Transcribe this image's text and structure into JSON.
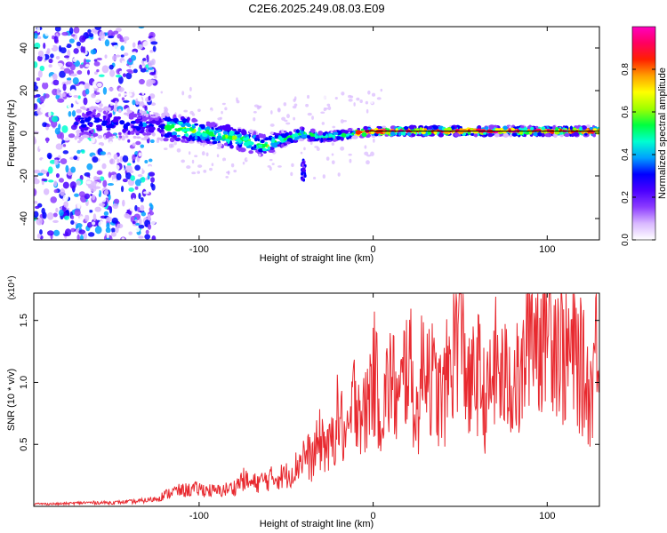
{
  "title": "C2E6.2025.249.08.03.E09",
  "chart_data": [
    {
      "type": "heatmap",
      "name": "spectrogram",
      "xlabel": "Height of straight line (km)",
      "ylabel": "Frequency (Hz)",
      "xlim": [
        -195,
        130
      ],
      "ylim": [
        -50,
        50
      ],
      "xticks": [
        -100,
        0,
        100
      ],
      "yticks": [
        -40,
        -20,
        0,
        20,
        40
      ],
      "grid": false,
      "colorbar": {
        "label": "Normalized spectral amplitude",
        "range": [
          0,
          1
        ],
        "ticks": [
          "0.0",
          "0.2",
          "0.4",
          "0.6",
          "0.8"
        ],
        "tick_values": [
          0.0,
          0.2,
          0.4,
          0.6,
          0.8
        ],
        "colors": [
          "#ffffff",
          "#d9b8ff",
          "#8c3cff",
          "#4a00ff",
          "#0000ff",
          "#00a0ff",
          "#00ffd0",
          "#00ff40",
          "#a0ff00",
          "#ffff00",
          "#ffa000",
          "#ff2000",
          "#ff0060",
          "#ff00c0"
        ]
      },
      "ridge": {
        "x": [
          -165,
          -150,
          -130,
          -110,
          -95,
          -80,
          -70,
          -62,
          -55,
          -48,
          -40,
          -30,
          -20,
          -10,
          0,
          10,
          30,
          60,
          90,
          130
        ],
        "y": [
          5,
          4.5,
          4,
          2,
          0,
          -2,
          -4,
          -6,
          -3,
          -2,
          0,
          -2,
          -1,
          0,
          1,
          1,
          1,
          1,
          1,
          1
        ],
        "half_width_hz": [
          8,
          7,
          6,
          6,
          5,
          5,
          5,
          5,
          4,
          3,
          3,
          2,
          2,
          2,
          2,
          2,
          2,
          2,
          2,
          2
        ]
      },
      "spur": {
        "x": -40,
        "y_range": [
          -22,
          -12
        ]
      }
    },
    {
      "type": "line",
      "name": "snr",
      "xlabel": "Height of straight line (km)",
      "ylabel": "SNR (10 * v/v)",
      "scale_label": "(x10⁴)",
      "xlim": [
        -195,
        130
      ],
      "ylim": [
        0,
        1.72
      ],
      "xticks": [
        -100,
        0,
        100
      ],
      "yticks": [
        0.5,
        1.0,
        1.5
      ],
      "grid": false,
      "series": [
        {
          "name": "SNR",
          "color": "#e8292f",
          "x": [
            -195,
            -180,
            -165,
            -150,
            -135,
            -125,
            -115,
            -100,
            -90,
            -80,
            -75,
            -70,
            -60,
            -50,
            -45,
            -40,
            -35,
            -30,
            -25,
            -20,
            -15,
            -10,
            -5,
            0,
            5,
            10,
            15,
            20,
            25,
            30,
            35,
            40,
            45,
            50,
            55,
            60,
            65,
            70,
            75,
            80,
            85,
            90,
            95,
            100,
            105,
            110,
            115,
            120,
            125,
            130
          ],
          "y": [
            0.02,
            0.02,
            0.03,
            0.03,
            0.04,
            0.06,
            0.12,
            0.14,
            0.12,
            0.15,
            0.22,
            0.18,
            0.22,
            0.25,
            0.3,
            0.42,
            0.38,
            0.55,
            0.45,
            0.75,
            0.5,
            0.95,
            0.7,
            1.1,
            0.75,
            1.05,
            0.8,
            1.25,
            0.7,
            1.3,
            0.95,
            0.85,
            1.2,
            1.6,
            0.9,
            1.1,
            0.8,
            1.15,
            1.0,
            1.05,
            0.95,
            1.6,
            1.35,
            1.7,
            1.4,
            1.2,
            1.25,
            1.1,
            0.9,
            1.65
          ]
        }
      ]
    }
  ]
}
